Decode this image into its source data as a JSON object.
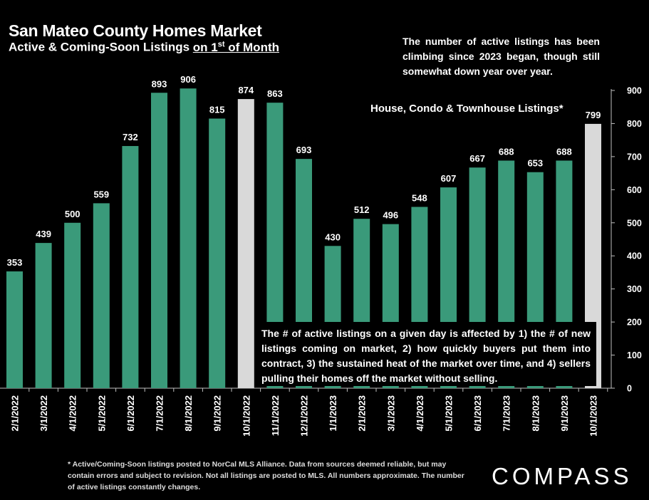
{
  "header": {
    "title": "San Mateo County Homes Market",
    "subtitle_prefix": "Active & Coming-Soon Listings ",
    "subtitle_underlined": "on 1",
    "subtitle_sup": "st",
    "subtitle_suffix": " of Month"
  },
  "annotations": {
    "top_note": "The number of active listings has been climbing since 2023 began, though still somewhat down year over year.",
    "series_label": "House, Condo & Townhouse Listings*",
    "box_note": "The # of active listings on a given day is affected by 1) the # of new listings coming on market, 2) how quickly buyers put them into contract, 3) the sustained heat of the market over time, and 4) sellers pulling their homes off the market without selling."
  },
  "footnote": "* Active/Coming-Soon listings posted to NorCal MLS Alliance.  Data from sources deemed reliable, but may contain errors and subject to revision.  Not all listings are posted to MLS. All numbers approximate. The number of active listings constantly changes.",
  "logo": "COMPASS",
  "colors": {
    "bar": "#3a9a7a",
    "highlight_bar": "#d9d9d9",
    "background": "#000000",
    "text": "#ffffff"
  },
  "chart_data": {
    "type": "bar",
    "categories": [
      "2/1/2022",
      "3/1/2022",
      "4/1/2022",
      "5/1/2022",
      "6/1/2022",
      "7/1/2022",
      "8/1/2022",
      "9/1/2022",
      "10/1/2022",
      "11/1/2022",
      "12/1/2022",
      "1/1/2023",
      "2/1/2023",
      "3/1/2023",
      "4/1/2023",
      "5/1/2023",
      "6/1/2023",
      "7/1/2023",
      "8/1/2023",
      "9/1/2023",
      "10/1/2023"
    ],
    "values": [
      353,
      439,
      500,
      559,
      732,
      893,
      906,
      815,
      874,
      863,
      693,
      430,
      512,
      496,
      548,
      607,
      667,
      688,
      653,
      688,
      799
    ],
    "highlighted": [
      "10/1/2022",
      "10/1/2023"
    ],
    "ylim": [
      0,
      900
    ],
    "yticks": [
      0,
      100,
      200,
      300,
      400,
      500,
      600,
      700,
      800,
      900
    ],
    "y_axis_side": "right",
    "data_labels": true
  }
}
